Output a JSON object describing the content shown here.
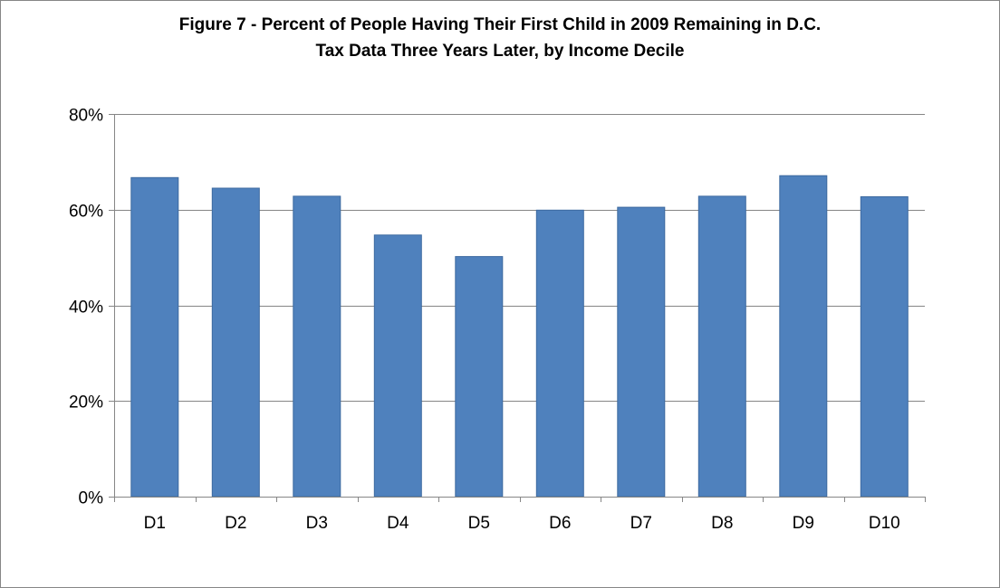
{
  "chart_data": {
    "type": "bar",
    "title_lines": [
      "Figure 7 - Percent of People Having Their First Child in 2009 Remaining in D.C.",
      "Tax Data Three Years Later, by Income Decile"
    ],
    "xlabel": "",
    "ylabel": "",
    "categories": [
      "D1",
      "D2",
      "D3",
      "D4",
      "D5",
      "D6",
      "D7",
      "D8",
      "D9",
      "D10"
    ],
    "values": [
      66.7,
      64.5,
      62.8,
      54.7,
      50.2,
      59.9,
      60.5,
      62.8,
      67.1,
      62.7
    ],
    "ylim": [
      0,
      80
    ],
    "yticks": [
      0,
      20,
      40,
      60,
      80
    ],
    "ytick_labels": [
      "0%",
      "20%",
      "40%",
      "60%",
      "80%"
    ],
    "grid": true,
    "legend": "none",
    "colors": {
      "bar": "#4f81bd",
      "bar_border": "#3d6aa0",
      "grid": "#868686",
      "axis": "#868686"
    }
  }
}
